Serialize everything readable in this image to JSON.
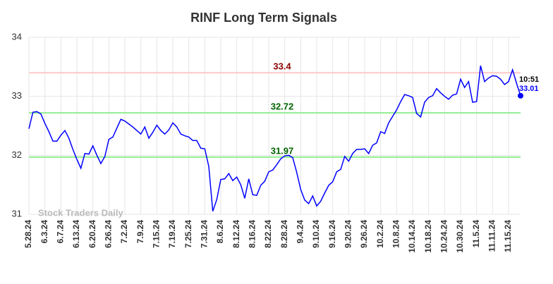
{
  "chart_data": {
    "type": "line",
    "title": "RINF Long Term Signals",
    "watermark": "Stock Traders Daily",
    "categories": [
      "5.28.24",
      null,
      null,
      null,
      "6.3.24",
      null,
      null,
      null,
      "6.7.24",
      null,
      null,
      null,
      "6.13.24",
      null,
      null,
      null,
      "6.20.24",
      null,
      null,
      null,
      "6.26.24",
      null,
      null,
      null,
      "7.2.24",
      null,
      null,
      null,
      "7.9.24",
      null,
      null,
      null,
      "7.15.24",
      null,
      null,
      null,
      "7.19.24",
      null,
      null,
      null,
      "7.25.24",
      null,
      null,
      null,
      "7.31.24",
      null,
      null,
      null,
      "8.6.24",
      null,
      null,
      null,
      "8.12.24",
      null,
      null,
      null,
      "8.16.24",
      null,
      null,
      null,
      "8.22.24",
      null,
      null,
      null,
      "8.28.24",
      null,
      null,
      null,
      "9.4.24",
      null,
      null,
      null,
      "9.10.24",
      null,
      null,
      null,
      "9.16.24",
      null,
      null,
      null,
      "9.20.24",
      null,
      null,
      null,
      "9.26.24",
      null,
      null,
      null,
      "10.2.24",
      null,
      null,
      null,
      "10.8.24",
      null,
      null,
      null,
      "10.14.24",
      null,
      null,
      null,
      "10.18.24",
      null,
      null,
      null,
      "10.24.24",
      null,
      null,
      null,
      "10.30.24",
      null,
      null,
      null,
      "11.5.24",
      null,
      null,
      null,
      "11.11.24",
      null,
      null,
      null,
      "11.15.24",
      null,
      null,
      null
    ],
    "series": [
      {
        "color": "#0000ff",
        "values": [
          32.45,
          32.73,
          32.74,
          32.7,
          32.54,
          32.4,
          32.24,
          32.24,
          32.34,
          32.42,
          32.29,
          32.1,
          31.93,
          31.78,
          32.03,
          32.02,
          32.16,
          32.0,
          31.86,
          31.98,
          32.27,
          32.31,
          32.46,
          32.61,
          32.58,
          32.53,
          32.48,
          32.42,
          32.36,
          32.48,
          32.29,
          32.39,
          32.51,
          32.42,
          32.36,
          32.43,
          32.55,
          32.48,
          32.36,
          32.33,
          32.31,
          32.25,
          32.25,
          32.12,
          32.11,
          31.81,
          31.05,
          31.25,
          31.59,
          31.6,
          31.69,
          31.57,
          31.63,
          31.5,
          31.27,
          31.6,
          31.33,
          31.32,
          31.49,
          31.56,
          31.72,
          31.75,
          31.84,
          31.94,
          31.99,
          32.0,
          31.96,
          31.71,
          31.42,
          31.24,
          31.18,
          31.31,
          31.14,
          31.22,
          31.36,
          31.49,
          31.55,
          31.72,
          31.76,
          31.98,
          31.9,
          32.03,
          32.1,
          32.1,
          32.11,
          32.03,
          32.17,
          32.21,
          32.4,
          32.37,
          32.55,
          32.66,
          32.77,
          32.91,
          33.03,
          33.01,
          32.98,
          32.71,
          32.65,
          32.9,
          32.98,
          33.01,
          33.13,
          33.06,
          33.0,
          32.95,
          33.02,
          33.04,
          33.29,
          33.15,
          33.25,
          32.9,
          32.91,
          33.52,
          33.25,
          33.31,
          33.35,
          33.34,
          33.29,
          33.2,
          33.25,
          33.45,
          33.22,
          33.01
        ]
      }
    ],
    "last_time": "10:51",
    "levels": [
      {
        "value": 33.4,
        "line_color": "#ffc8c8",
        "text_color": "#8b0000"
      },
      {
        "value": 32.72,
        "line_color": "#90ee90",
        "text_color": "#006400"
      },
      {
        "value": 31.97,
        "line_color": "#90ee90",
        "text_color": "#006400"
      }
    ],
    "ylim": [
      31,
      34
    ],
    "yticks": [
      31,
      32,
      33,
      34
    ],
    "grid": true
  }
}
